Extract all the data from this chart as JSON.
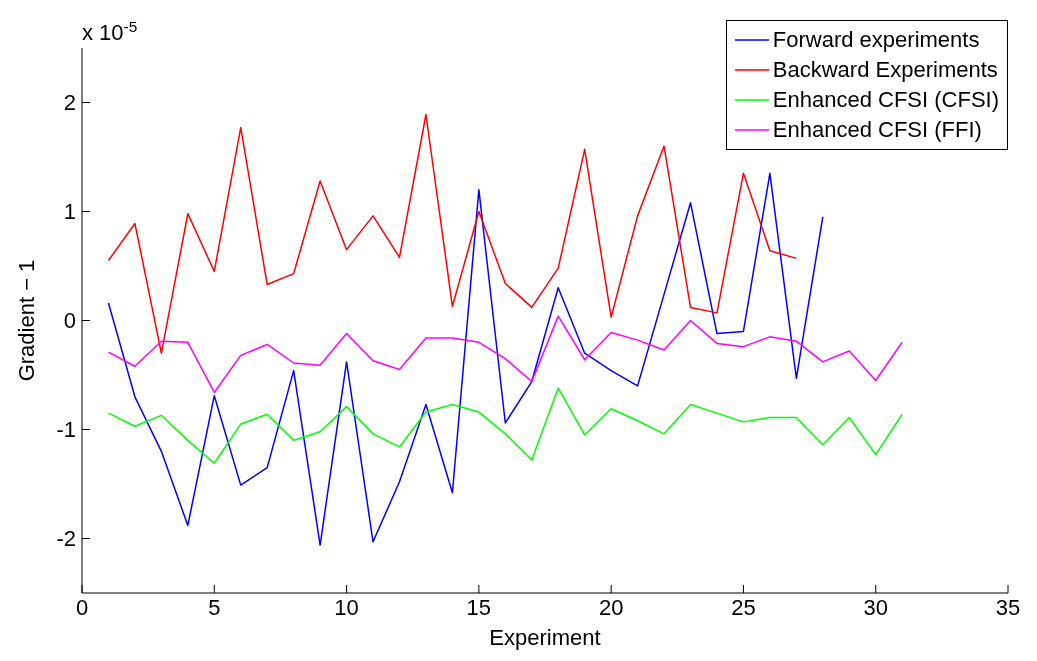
{
  "chart_data": {
    "type": "line",
    "xlabel": "Experiment",
    "ylabel": "Gradient − 1",
    "annotations": [
      "x 10$^{-5}$"
    ],
    "xlim": [
      0,
      35
    ],
    "xticks": [
      0,
      5,
      10,
      15,
      20,
      25,
      30,
      35
    ],
    "ylim": [
      -2.5,
      2.5
    ],
    "yticks": [
      -2,
      -1,
      0,
      1,
      2
    ],
    "legend": "top right",
    "marker": "none",
    "line_style": "solid",
    "series": [
      {
        "name": "Forward experiments",
        "color": "#0000ff",
        "x": [
          1,
          2,
          3,
          4,
          5,
          6,
          7,
          8,
          9,
          10,
          11,
          12,
          13,
          14,
          15,
          16,
          17,
          18,
          19,
          20,
          21,
          22,
          23,
          24,
          25,
          26,
          27,
          28
        ],
        "values": [
          0.16,
          -0.7,
          -1.2,
          -1.88,
          -0.69,
          -1.51,
          -1.35,
          -0.46,
          -2.06,
          -0.38,
          -2.03,
          -1.48,
          -0.77,
          -1.58,
          1.2,
          -0.94,
          -0.56,
          0.3,
          -0.3,
          -0.46,
          -0.6,
          0.24,
          1.08,
          -0.12,
          -0.1,
          1.35,
          -0.53,
          0.95
        ]
      },
      {
        "name": "Backward Experiments",
        "color": "#ff0000",
        "x": [
          1,
          2,
          3,
          4,
          5,
          6,
          7,
          8,
          9,
          10,
          11,
          12,
          13,
          14,
          15,
          16,
          17,
          18,
          19,
          20,
          21,
          22,
          23,
          24,
          25,
          26,
          27
        ],
        "values": [
          0.55,
          0.89,
          -0.3,
          0.98,
          0.45,
          1.77,
          0.33,
          0.43,
          1.28,
          0.65,
          0.96,
          0.58,
          1.89,
          0.13,
          1.0,
          0.34,
          0.12,
          0.48,
          1.57,
          0.03,
          0.96,
          1.6,
          0.12,
          0.07,
          1.35,
          0.64,
          0.57
        ]
      },
      {
        "name": "Enhanced CFSI (CFSI)",
        "color": "#00ff00",
        "x": [
          1,
          2,
          3,
          4,
          5,
          6,
          7,
          8,
          9,
          10,
          11,
          12,
          13,
          14,
          15,
          16,
          17,
          18,
          19,
          20,
          21,
          22,
          23,
          24,
          25,
          26,
          27,
          28,
          29,
          30,
          31
        ],
        "values": [
          -0.85,
          -0.97,
          -0.87,
          -1.1,
          -1.31,
          -0.95,
          -0.86,
          -1.1,
          -1.02,
          -0.79,
          -1.04,
          -1.16,
          -0.84,
          -0.77,
          -0.84,
          -1.04,
          -1.28,
          -0.62,
          -1.05,
          -0.81,
          -0.92,
          -1.04,
          -0.77,
          -0.85,
          -0.93,
          -0.89,
          -0.89,
          -1.14,
          -0.89,
          -1.23,
          -0.86
        ]
      },
      {
        "name": "Enhanced CFSI (FFI)",
        "color": "#ff00ff",
        "x": [
          1,
          2,
          3,
          4,
          5,
          6,
          7,
          8,
          9,
          10,
          11,
          12,
          13,
          14,
          15,
          16,
          17,
          18,
          19,
          20,
          21,
          22,
          23,
          24,
          25,
          26,
          27,
          28,
          29,
          30,
          31
        ],
        "values": [
          -0.29,
          -0.42,
          -0.19,
          -0.2,
          -0.66,
          -0.32,
          -0.22,
          -0.39,
          -0.41,
          -0.12,
          -0.37,
          -0.45,
          -0.16,
          -0.16,
          -0.2,
          -0.35,
          -0.56,
          0.04,
          -0.36,
          -0.11,
          -0.18,
          -0.27,
          0.0,
          -0.21,
          -0.24,
          -0.15,
          -0.19,
          -0.38,
          -0.28,
          -0.55,
          -0.2
        ]
      }
    ]
  }
}
